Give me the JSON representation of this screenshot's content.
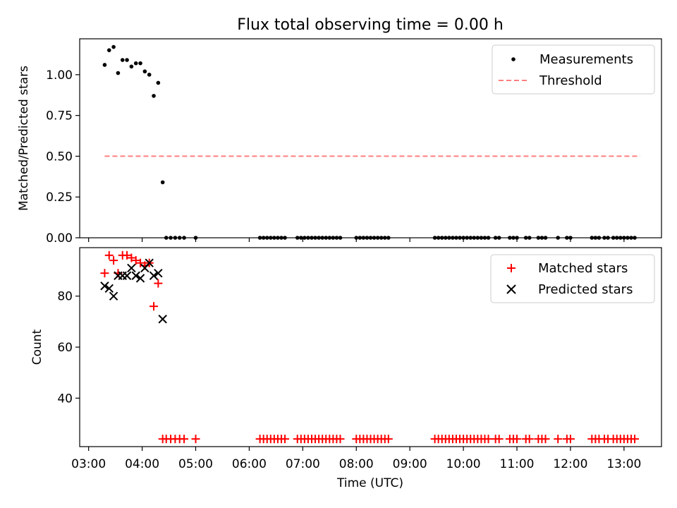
{
  "chart_data": [
    {
      "type": "scatter",
      "title": "Flux total observing time = 0.00 h",
      "ylabel": "Matched/Predicted stars",
      "xlabel": "",
      "ylim": [
        0,
        1.22
      ],
      "yticks": [
        0.0,
        0.25,
        0.5,
        0.75,
        1.0
      ],
      "ytick_labels": [
        "0.00",
        "0.25",
        "0.50",
        "0.75",
        "1.00"
      ],
      "legend": {
        "position": "top-right",
        "entries": [
          "Measurements",
          "Threshold"
        ]
      },
      "series": [
        {
          "name": "Measurements",
          "marker": "dot",
          "color": "#000000",
          "points": [
            [
              "03:18",
              1.06
            ],
            [
              "03:23",
              1.15
            ],
            [
              "03:28",
              1.17
            ],
            [
              "03:33",
              1.01
            ],
            [
              "03:38",
              1.09
            ],
            [
              "03:43",
              1.09
            ],
            [
              "03:48",
              1.05
            ],
            [
              "03:53",
              1.07
            ],
            [
              "03:58",
              1.07
            ],
            [
              "04:03",
              1.02
            ],
            [
              "04:08",
              1.0
            ],
            [
              "04:13",
              0.87
            ],
            [
              "04:18",
              0.95
            ],
            [
              "04:23",
              0.34
            ],
            [
              "04:27",
              0.0
            ],
            [
              "04:32",
              0.0
            ],
            [
              "04:37",
              0.0
            ],
            [
              "04:42",
              0.0
            ],
            [
              "04:47",
              0.0
            ],
            [
              "05:00",
              0.0
            ],
            [
              "06:12",
              0.0
            ],
            [
              "06:16",
              0.0
            ],
            [
              "06:20",
              0.0
            ],
            [
              "06:24",
              0.0
            ],
            [
              "06:28",
              0.0
            ],
            [
              "06:32",
              0.0
            ],
            [
              "06:36",
              0.0
            ],
            [
              "06:40",
              0.0
            ],
            [
              "06:54",
              0.0
            ],
            [
              "06:58",
              0.0
            ],
            [
              "07:02",
              0.0
            ],
            [
              "07:06",
              0.0
            ],
            [
              "07:10",
              0.0
            ],
            [
              "07:14",
              0.0
            ],
            [
              "07:18",
              0.0
            ],
            [
              "07:22",
              0.0
            ],
            [
              "07:26",
              0.0
            ],
            [
              "07:30",
              0.0
            ],
            [
              "07:34",
              0.0
            ],
            [
              "07:38",
              0.0
            ],
            [
              "07:42",
              0.0
            ],
            [
              "08:00",
              0.0
            ],
            [
              "08:04",
              0.0
            ],
            [
              "08:08",
              0.0
            ],
            [
              "08:12",
              0.0
            ],
            [
              "08:16",
              0.0
            ],
            [
              "08:20",
              0.0
            ],
            [
              "08:24",
              0.0
            ],
            [
              "08:28",
              0.0
            ],
            [
              "08:32",
              0.0
            ],
            [
              "08:36",
              0.0
            ],
            [
              "09:28",
              0.0
            ],
            [
              "09:32",
              0.0
            ],
            [
              "09:36",
              0.0
            ],
            [
              "09:40",
              0.0
            ],
            [
              "09:44",
              0.0
            ],
            [
              "09:48",
              0.0
            ],
            [
              "09:52",
              0.0
            ],
            [
              "09:56",
              0.0
            ],
            [
              "10:00",
              0.0
            ],
            [
              "10:04",
              0.0
            ],
            [
              "10:08",
              0.0
            ],
            [
              "10:12",
              0.0
            ],
            [
              "10:16",
              0.0
            ],
            [
              "10:20",
              0.0
            ],
            [
              "10:24",
              0.0
            ],
            [
              "10:28",
              0.0
            ],
            [
              "10:36",
              0.0
            ],
            [
              "10:40",
              0.0
            ],
            [
              "10:52",
              0.0
            ],
            [
              "10:56",
              0.0
            ],
            [
              "11:00",
              0.0
            ],
            [
              "11:10",
              0.0
            ],
            [
              "11:14",
              0.0
            ],
            [
              "11:24",
              0.0
            ],
            [
              "11:28",
              0.0
            ],
            [
              "11:32",
              0.0
            ],
            [
              "11:46",
              0.0
            ],
            [
              "11:56",
              0.0
            ],
            [
              "12:00",
              0.0
            ],
            [
              "12:24",
              0.0
            ],
            [
              "12:28",
              0.0
            ],
            [
              "12:32",
              0.0
            ],
            [
              "12:38",
              0.0
            ],
            [
              "12:42",
              0.0
            ],
            [
              "12:48",
              0.0
            ],
            [
              "12:52",
              0.0
            ],
            [
              "12:56",
              0.0
            ],
            [
              "13:00",
              0.0
            ],
            [
              "13:04",
              0.0
            ],
            [
              "13:08",
              0.0
            ],
            [
              "13:12",
              0.0
            ]
          ]
        },
        {
          "name": "Threshold",
          "style": "dashed-line",
          "color": "#ff7f7f",
          "points": [
            [
              "03:18",
              0.5
            ],
            [
              "13:18",
              0.5
            ]
          ]
        }
      ]
    },
    {
      "type": "scatter",
      "title": "",
      "ylabel": "Count",
      "xlabel": "Time (UTC)",
      "ylim": [
        21,
        99
      ],
      "yticks": [
        40,
        60,
        80
      ],
      "ytick_labels": [
        "40",
        "60",
        "80"
      ],
      "xlim": [
        "02:50",
        "13:42"
      ],
      "xticks": [
        "03:00",
        "04:00",
        "05:00",
        "06:00",
        "07:00",
        "08:00",
        "09:00",
        "10:00",
        "11:00",
        "12:00",
        "13:00"
      ],
      "xtick_labels": [
        "03:00",
        "04:00",
        "05:00",
        "06:00",
        "07:00",
        "08:00",
        "09:00",
        "10:00",
        "11:00",
        "12:00",
        "13:00"
      ],
      "legend": {
        "position": "top-right",
        "entries": [
          "Matched stars",
          "Predicted stars"
        ]
      },
      "series": [
        {
          "name": "Matched stars",
          "marker": "plus",
          "color": "#ff0000",
          "points": [
            [
              "03:18",
              89
            ],
            [
              "03:23",
              96
            ],
            [
              "03:28",
              94
            ],
            [
              "03:33",
              89
            ],
            [
              "03:38",
              96
            ],
            [
              "03:43",
              96
            ],
            [
              "03:48",
              95
            ],
            [
              "03:53",
              94
            ],
            [
              "03:58",
              93
            ],
            [
              "04:03",
              92
            ],
            [
              "04:08",
              93
            ],
            [
              "04:13",
              76
            ],
            [
              "04:18",
              85
            ],
            [
              "04:23",
              24
            ],
            [
              "04:27",
              24
            ],
            [
              "04:32",
              24
            ],
            [
              "04:37",
              24
            ],
            [
              "04:42",
              24
            ],
            [
              "04:47",
              24
            ],
            [
              "05:00",
              24
            ],
            [
              "06:12",
              24
            ],
            [
              "06:16",
              24
            ],
            [
              "06:20",
              24
            ],
            [
              "06:24",
              24
            ],
            [
              "06:28",
              24
            ],
            [
              "06:32",
              24
            ],
            [
              "06:36",
              24
            ],
            [
              "06:40",
              24
            ],
            [
              "06:54",
              24
            ],
            [
              "06:58",
              24
            ],
            [
              "07:02",
              24
            ],
            [
              "07:06",
              24
            ],
            [
              "07:10",
              24
            ],
            [
              "07:14",
              24
            ],
            [
              "07:18",
              24
            ],
            [
              "07:22",
              24
            ],
            [
              "07:26",
              24
            ],
            [
              "07:30",
              24
            ],
            [
              "07:34",
              24
            ],
            [
              "07:38",
              24
            ],
            [
              "07:42",
              24
            ],
            [
              "08:00",
              24
            ],
            [
              "08:04",
              24
            ],
            [
              "08:08",
              24
            ],
            [
              "08:12",
              24
            ],
            [
              "08:16",
              24
            ],
            [
              "08:20",
              24
            ],
            [
              "08:24",
              24
            ],
            [
              "08:28",
              24
            ],
            [
              "08:32",
              24
            ],
            [
              "08:36",
              24
            ],
            [
              "09:28",
              24
            ],
            [
              "09:32",
              24
            ],
            [
              "09:36",
              24
            ],
            [
              "09:40",
              24
            ],
            [
              "09:44",
              24
            ],
            [
              "09:48",
              24
            ],
            [
              "09:52",
              24
            ],
            [
              "09:56",
              24
            ],
            [
              "10:00",
              24
            ],
            [
              "10:04",
              24
            ],
            [
              "10:08",
              24
            ],
            [
              "10:12",
              24
            ],
            [
              "10:16",
              24
            ],
            [
              "10:20",
              24
            ],
            [
              "10:24",
              24
            ],
            [
              "10:28",
              24
            ],
            [
              "10:36",
              24
            ],
            [
              "10:40",
              24
            ],
            [
              "10:52",
              24
            ],
            [
              "10:56",
              24
            ],
            [
              "11:00",
              24
            ],
            [
              "11:10",
              24
            ],
            [
              "11:14",
              24
            ],
            [
              "11:24",
              24
            ],
            [
              "11:28",
              24
            ],
            [
              "11:32",
              24
            ],
            [
              "11:46",
              24
            ],
            [
              "11:56",
              24
            ],
            [
              "12:00",
              24
            ],
            [
              "12:24",
              24
            ],
            [
              "12:28",
              24
            ],
            [
              "12:32",
              24
            ],
            [
              "12:38",
              24
            ],
            [
              "12:42",
              24
            ],
            [
              "12:48",
              24
            ],
            [
              "12:52",
              24
            ],
            [
              "12:56",
              24
            ],
            [
              "13:00",
              24
            ],
            [
              "13:04",
              24
            ],
            [
              "13:08",
              24
            ],
            [
              "13:12",
              24
            ]
          ]
        },
        {
          "name": "Predicted stars",
          "marker": "x",
          "color": "#000000",
          "points": [
            [
              "03:18",
              84
            ],
            [
              "03:23",
              83
            ],
            [
              "03:28",
              80
            ],
            [
              "03:33",
              88
            ],
            [
              "03:38",
              88
            ],
            [
              "03:43",
              88
            ],
            [
              "03:48",
              91
            ],
            [
              "03:53",
              88
            ],
            [
              "03:58",
              87
            ],
            [
              "04:03",
              91
            ],
            [
              "04:08",
              93
            ],
            [
              "04:13",
              88
            ],
            [
              "04:18",
              89
            ],
            [
              "04:23",
              71
            ]
          ]
        }
      ]
    }
  ]
}
